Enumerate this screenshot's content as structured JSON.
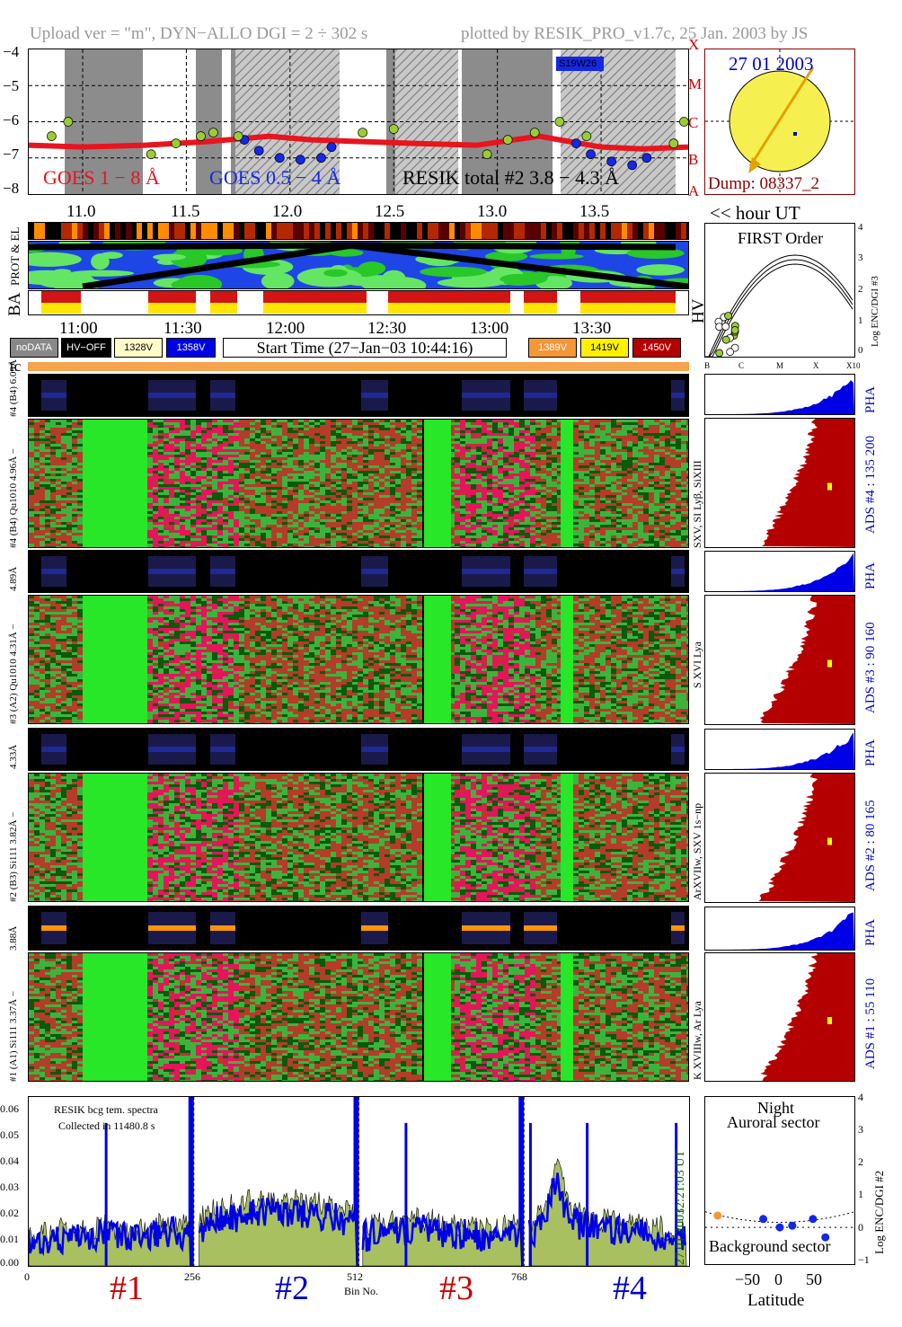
{
  "header": {
    "left": "Upload ver = \"m\", DYN−ALLO DGI =   2 ÷ 302 s",
    "right": "plotted by RESIK_PRO_v1.7c, 25 Jan. 2003 by JS"
  },
  "goes": {
    "yticks": [
      "−4",
      "−5",
      "−6",
      "−7",
      "−8"
    ],
    "classes": [
      "X",
      "M",
      "C",
      "B",
      "A"
    ],
    "region": "S19W26",
    "legend_goes18": "GOES 1 − 8 Å",
    "legend_goes054": "GOES 0.5 − 4 Å",
    "legend_resik": "RESIK total #2  3.8 − 4.3 Å",
    "hour_ticks": [
      "11.0",
      "11.5",
      "12.0",
      "12.5",
      "13.0",
      "13.5"
    ],
    "hour_label": "<< hour UT"
  },
  "sun": {
    "date": "27 01 2003",
    "dump": "Dump: 08337_2"
  },
  "orbit": {
    "prot_el_label": "PROT & EL",
    "ba_label": "BA",
    "hv_label": "HV",
    "time_ticks": [
      "11:00",
      "11:30",
      "12:00",
      "12:30",
      "13:00",
      "13:30"
    ]
  },
  "first_order": {
    "title": "FIRST Order",
    "ylabel": "Log ENC/DGI #3",
    "yticks": [
      "4",
      "3",
      "2",
      "1",
      "0"
    ],
    "xticks": [
      "B",
      "C",
      "M",
      "X",
      "X10"
    ]
  },
  "legend": {
    "nodata": "noDATA",
    "hvoff": "HV−OFF",
    "v1328": "1328V",
    "v1358": "1358V",
    "start_time": "Start Time (27−Jan−03 10:44:16)",
    "v1389": "1389V",
    "v1419": "1419V",
    "v1450": "1450V",
    "tc": "tc"
  },
  "channels": [
    {
      "pha_label": "#4 (B4)  6.09Å",
      "label": "#4 (B4) Qu1010 4.96Å −",
      "lines": "SXV, SI Lyβ, SiXIII",
      "ads": "ADS #4 :   135 200",
      "pha": "PHA"
    },
    {
      "pha_label": "4.89Å",
      "label": "#3 (A2) Qu1010  4.31Å −",
      "lines": "S XVI Lya",
      "ads": "ADS #3 :    90 160",
      "pha": "PHA"
    },
    {
      "pha_label": "4.33Å",
      "label": "#2 (B3) Si111  3.82Å −",
      "lines": "ArXVIIw, SXV 1s−np",
      "ads": "ADS #2 :    80 165",
      "pha": "PHA"
    },
    {
      "pha_label": "3.88Å",
      "label": "#1 (A1) Si111  3.37Å −",
      "lines": "K XVIIIw, Ar Lya",
      "ads": "ADS #1 :    55 110",
      "pha": "PHA"
    }
  ],
  "spectra": {
    "title1": "RESIK bcg tem. spectra",
    "title2": "Collected in 11480.8 s",
    "right_time": "12:21:03 UT",
    "right_date": "27 01 2003",
    "xlabel": "Bin No.",
    "yticks": [
      "0.06",
      "0.05",
      "0.04",
      "0.03",
      "0.02",
      "0.01",
      "0.00"
    ],
    "xticks": [
      "0",
      "256",
      "512",
      "768"
    ],
    "channel_marks": [
      "#1",
      "#2",
      "#3",
      "#4"
    ]
  },
  "auroral": {
    "night": "Night",
    "auroral": "Auroral sector",
    "background": "Background sector",
    "xlabel": "Latitude",
    "ylabel": "Log ENC/DGI #2",
    "xticks": [
      "−50",
      "0",
      "50"
    ],
    "yticks": [
      "4",
      "3",
      "2",
      "1",
      "0",
      "−1"
    ]
  },
  "colors": {
    "goes_red": "#e8141e",
    "goes_blue": "#1428e6",
    "resik_green": "#9acd32",
    "sun_yellow": "#f5f050",
    "ads_red": "#b40000",
    "pha_blue": "#0000e6",
    "text_blue": "#0000c8",
    "text_red": "#c80000",
    "ratemap_green": "#28e628",
    "dark_red": "#8b0000",
    "spectrum_green": "#a8c060"
  },
  "chart_data": [
    {
      "type": "scatter",
      "title": "",
      "xlabel": "hour UT",
      "ylabel": "",
      "xlim": [
        10.74,
        13.92
      ],
      "ylim": [
        -8,
        -4
      ],
      "series": [
        {
          "name": "GOES 1 − 8 Å",
          "x": [
            10.74,
            11.0,
            11.3,
            11.6,
            11.9,
            12.1,
            12.35,
            12.6,
            12.9,
            13.2,
            13.5,
            13.7,
            13.92
          ],
          "y": [
            -6.65,
            -6.7,
            -6.65,
            -6.55,
            -6.4,
            -6.5,
            -6.55,
            -6.6,
            -6.65,
            -6.4,
            -6.7,
            -6.75,
            -6.7
          ]
        },
        {
          "name": "GOES 0.5 − 4 Å",
          "x": [
            11.78,
            11.85,
            11.95,
            12.05,
            12.15,
            12.2,
            13.38,
            13.45,
            13.55,
            13.65,
            13.72
          ],
          "y": [
            -6.5,
            -6.8,
            -7.0,
            -7.05,
            -7.0,
            -6.7,
            -6.6,
            -6.9,
            -7.1,
            -7.2,
            -7.0
          ]
        },
        {
          "name": "RESIK total #2  3.8 − 4.3 Å",
          "x": [
            10.85,
            10.93,
            11.33,
            11.45,
            11.57,
            11.63,
            11.75,
            12.35,
            12.5,
            12.95,
            13.05,
            13.18,
            13.3,
            13.43,
            13.85,
            13.9
          ],
          "y": [
            -6.4,
            -6.0,
            -6.9,
            -6.6,
            -6.4,
            -6.3,
            -6.4,
            -6.3,
            -6.2,
            -6.9,
            -6.5,
            -6.3,
            -6.0,
            -6.4,
            -6.6,
            -6.0
          ]
        }
      ]
    },
    {
      "type": "line",
      "title": "RESIK bcg tem. spectra",
      "xlabel": "Bin No.",
      "ylabel": "",
      "xlim": [
        0,
        1024
      ],
      "ylim": [
        0,
        0.065
      ],
      "series": [
        {
          "name": "#1",
          "x": [
            0,
            32,
            64,
            96,
            128,
            160,
            192,
            224,
            250
          ],
          "y": [
            0.012,
            0.013,
            0.014,
            0.015,
            0.015,
            0.014,
            0.015,
            0.016,
            0.015
          ]
        },
        {
          "name": "#2",
          "x": [
            264,
            296,
            328,
            360,
            392,
            424,
            456,
            488,
            508
          ],
          "y": [
            0.018,
            0.022,
            0.024,
            0.026,
            0.025,
            0.025,
            0.024,
            0.022,
            0.02
          ]
        },
        {
          "name": "#3",
          "x": [
            518,
            550,
            582,
            614,
            646,
            678,
            710,
            742,
            764
          ],
          "y": [
            0.014,
            0.016,
            0.017,
            0.018,
            0.016,
            0.015,
            0.014,
            0.015,
            0.016
          ]
        },
        {
          "name": "#4",
          "x": [
            776,
            800,
            818,
            832,
            850,
            880,
            920,
            960,
            1000,
            1020
          ],
          "y": [
            0.015,
            0.022,
            0.041,
            0.028,
            0.02,
            0.018,
            0.016,
            0.015,
            0.014,
            0.013
          ]
        }
      ]
    },
    {
      "type": "scatter",
      "title": "",
      "xlabel": "Latitude",
      "ylabel": "Log ENC/DGI #2",
      "xlim": [
        -90,
        90
      ],
      "ylim": [
        -1,
        4
      ],
      "series": [
        {
          "name": "",
          "x": [
            -75,
            -20,
            0,
            15,
            40,
            55
          ],
          "y": [
            0.45,
            0.35,
            0.1,
            0.15,
            0.35,
            -0.2
          ]
        }
      ]
    }
  ]
}
